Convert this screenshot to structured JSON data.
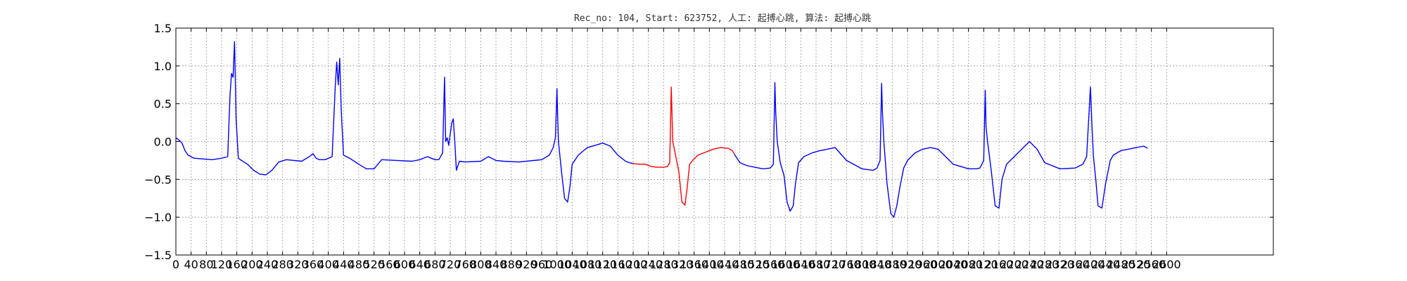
{
  "chart_data": {
    "type": "line",
    "title": "Rec_no: 104, Start: 623752, 人工: 起搏心跳, 算法: 起搏心跳",
    "xlabel": "",
    "ylabel": "",
    "xlim": [
      0,
      2880
    ],
    "ylim": [
      -1.5,
      1.5
    ],
    "grid": true,
    "y_ticks": [
      1.5,
      1.0,
      0.5,
      0.0,
      -0.5,
      -1.0,
      -1.5
    ],
    "y_tick_labels": [
      "1.5",
      "1.0",
      "0.5",
      "0.0",
      "−0.5",
      "−1.0",
      "−1.5"
    ],
    "x_ticks": [
      0,
      40,
      80,
      120,
      160,
      200,
      240,
      280,
      320,
      360,
      400,
      440,
      480,
      520,
      560,
      600,
      640,
      680,
      720,
      760,
      800,
      840,
      880,
      920,
      960,
      1000,
      1040,
      1080,
      1120,
      1160,
      1200,
      1240,
      1280,
      1320,
      1360,
      1400,
      1440,
      1480,
      1520,
      1560,
      1600,
      1640,
      1680,
      1720,
      1760,
      1800,
      1840,
      1880,
      1920,
      1960,
      2000,
      2040,
      2080,
      2120,
      2160,
      2200,
      2240,
      2280,
      2320,
      2360,
      2400,
      2440,
      2480,
      2520,
      2560,
      2600
    ],
    "x_tick_labels": [
      "0",
      "40",
      "80",
      "120",
      "160",
      "200",
      "240",
      "280",
      "320",
      "360",
      "400",
      "440",
      "480",
      "520",
      "560",
      "600",
      "640",
      "680",
      "720",
      "760",
      "800",
      "840",
      "880",
      "920",
      "960",
      "1000",
      "1040",
      "1080",
      "1120",
      "1160",
      "1200",
      "1240",
      "1280",
      "1320",
      "1360",
      "1400",
      "1440",
      "1480",
      "1520",
      "1560",
      "1600",
      "1640",
      "1680",
      "1720",
      "1760",
      "1800",
      "1840",
      "1880",
      "1920",
      "1960",
      "2000",
      "2040",
      "2080",
      "2120",
      "2160",
      "2200",
      "2240",
      "2280",
      "2320",
      "2360",
      "2400",
      "2440",
      "2480",
      "2520",
      "2560",
      "2600"
    ],
    "series": [
      {
        "color": "#0000ff",
        "x": [
          0,
          8,
          16,
          24,
          32,
          48,
          72,
          96,
          120,
          136,
          142,
          146,
          150,
          154,
          158,
          164,
          172,
          188,
          204,
          220,
          236,
          252,
          270,
          290,
          330,
          350,
          360,
          368,
          376,
          392,
          410,
          418,
          422,
          426,
          430,
          434,
          440,
          456,
          480,
          500,
          520,
          540,
          580,
          620,
          640,
          660,
          670,
          680,
          690,
          700,
          705,
          708,
          712,
          716,
          720,
          724,
          728,
          732,
          736,
          744,
          760,
          800,
          820,
          840,
          860,
          900,
          960,
          980,
          990,
          996,
          1000,
          1002,
          1004,
          1012,
          1020,
          1028,
          1034,
          1040,
          1048,
          1056,
          1070,
          1080,
          1100,
          1120,
          1140,
          1160,
          1180,
          1190,
          1200
        ],
        "y": [
          0.05,
          0.02,
          -0.02,
          -0.12,
          -0.18,
          -0.22,
          -0.23,
          -0.24,
          -0.22,
          -0.2,
          0.6,
          0.9,
          0.85,
          1.32,
          0.3,
          -0.22,
          -0.25,
          -0.3,
          -0.38,
          -0.43,
          -0.44,
          -0.38,
          -0.27,
          -0.24,
          -0.26,
          -0.2,
          -0.16,
          -0.22,
          -0.24,
          -0.24,
          -0.2,
          0.7,
          1.05,
          0.75,
          1.1,
          0.4,
          -0.18,
          -0.22,
          -0.3,
          -0.36,
          -0.36,
          -0.24,
          -0.25,
          -0.26,
          -0.24,
          -0.2,
          -0.22,
          -0.24,
          -0.24,
          -0.15,
          0.85,
          0.0,
          0.05,
          -0.05,
          0.1,
          0.25,
          0.3,
          0.0,
          -0.38,
          -0.26,
          -0.27,
          -0.26,
          -0.2,
          -0.25,
          -0.26,
          -0.27,
          -0.24,
          -0.18,
          -0.08,
          0.05,
          0.7,
          0.3,
          0.0,
          -0.4,
          -0.75,
          -0.8,
          -0.6,
          -0.3,
          -0.24,
          -0.18,
          -0.12,
          -0.08,
          -0.05,
          -0.02,
          -0.06,
          -0.18,
          -0.26,
          -0.28,
          -0.29
        ]
      },
      {
        "color": "#ff0000",
        "x": [
          1200,
          1216,
          1232,
          1248,
          1264,
          1280,
          1290,
          1296,
          1300,
          1304,
          1306,
          1312,
          1320,
          1328,
          1336,
          1342,
          1348,
          1356,
          1370,
          1390,
          1410,
          1430,
          1450,
          1460,
          1466
        ],
        "y": [
          -0.29,
          -0.3,
          -0.3,
          -0.33,
          -0.34,
          -0.34,
          -0.33,
          -0.28,
          0.72,
          0.0,
          -0.05,
          -0.2,
          -0.4,
          -0.8,
          -0.84,
          -0.6,
          -0.3,
          -0.25,
          -0.18,
          -0.14,
          -0.1,
          -0.08,
          -0.09,
          -0.12,
          -0.17
        ]
      },
      {
        "color": "#0000ff",
        "x": [
          1466,
          1480,
          1500,
          1520,
          1540,
          1560,
          1568,
          1572,
          1574,
          1578,
          1586,
          1596,
          1604,
          1612,
          1620,
          1626,
          1634,
          1648,
          1670,
          1690,
          1710,
          1730,
          1760,
          1800,
          1830,
          1840,
          1848,
          1852,
          1854,
          1858,
          1866,
          1876,
          1884,
          1892,
          1900,
          1910,
          1920,
          1940,
          1960,
          1980,
          2000,
          2040,
          2080,
          2100,
          2110,
          2120,
          2124,
          2126,
          2130,
          2140,
          2150,
          2160,
          2168,
          2180,
          2200,
          2220,
          2240,
          2260,
          2280,
          2320,
          2360,
          2380,
          2390,
          2400,
          2404,
          2408,
          2414,
          2420,
          2430,
          2440,
          2452,
          2460,
          2480,
          2500,
          2520,
          2540,
          2550
        ],
        "y": [
          -0.17,
          -0.28,
          -0.32,
          -0.34,
          -0.36,
          -0.35,
          -0.3,
          0.78,
          0.4,
          0.0,
          -0.28,
          -0.45,
          -0.8,
          -0.92,
          -0.85,
          -0.55,
          -0.28,
          -0.2,
          -0.15,
          -0.12,
          -0.1,
          -0.08,
          -0.25,
          -0.36,
          -0.38,
          -0.35,
          -0.25,
          0.77,
          0.4,
          0.0,
          -0.55,
          -0.95,
          -1.0,
          -0.85,
          -0.6,
          -0.35,
          -0.25,
          -0.15,
          -0.1,
          -0.08,
          -0.1,
          -0.3,
          -0.36,
          -0.36,
          -0.35,
          -0.25,
          0.68,
          0.2,
          0.0,
          -0.4,
          -0.85,
          -0.88,
          -0.5,
          -0.3,
          -0.2,
          -0.1,
          0.0,
          -0.1,
          -0.28,
          -0.36,
          -0.35,
          -0.3,
          -0.2,
          0.72,
          0.2,
          -0.2,
          -0.5,
          -0.85,
          -0.88,
          -0.55,
          -0.25,
          -0.18,
          -0.12,
          -0.1,
          -0.08,
          -0.06,
          -0.09
        ]
      }
    ]
  }
}
